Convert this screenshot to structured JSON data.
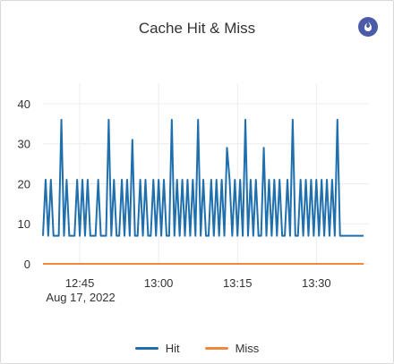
{
  "title": "Cache Hit & Miss",
  "badge_icon": "fire-icon",
  "chart_data": {
    "type": "line",
    "title": "Cache Hit & Miss",
    "xlabel": "",
    "ylabel": "",
    "ylim": [
      0,
      42
    ],
    "y_ticks": [
      0,
      10,
      20,
      30,
      40
    ],
    "x_ticks": [
      "12:45",
      "13:00",
      "13:15",
      "13:30"
    ],
    "x_date_label": "Aug 17, 2022",
    "x_range_minutes": [
      "12:38",
      "13:40"
    ],
    "grid": true,
    "legend_position": "bottom",
    "series": [
      {
        "name": "Hit",
        "color": "#1f6fad",
        "minute_offset_start": 0,
        "minute_step": 0.5,
        "values": [
          7,
          21,
          7,
          21,
          7,
          7,
          7,
          36,
          7,
          21,
          7,
          7,
          7,
          21,
          7,
          21,
          7,
          21,
          7,
          7,
          7,
          21,
          7,
          7,
          7,
          36,
          7,
          21,
          7,
          7,
          21,
          7,
          21,
          7,
          31,
          7,
          7,
          21,
          7,
          21,
          7,
          7,
          21,
          7,
          21,
          7,
          21,
          7,
          7,
          36,
          7,
          21,
          7,
          21,
          7,
          21,
          7,
          21,
          7,
          36,
          7,
          21,
          7,
          7,
          21,
          7,
          21,
          7,
          21,
          7,
          29,
          21,
          7,
          21,
          7,
          21,
          7,
          36,
          7,
          21,
          7,
          21,
          7,
          7,
          29,
          7,
          21,
          7,
          21,
          7,
          21,
          7,
          7,
          21,
          7,
          36,
          7,
          7,
          21,
          7,
          21,
          7,
          21,
          7,
          21,
          7,
          21,
          7,
          21,
          7,
          21,
          7,
          36,
          7,
          7,
          7,
          7,
          7,
          7,
          7,
          7,
          7,
          7
        ]
      },
      {
        "name": "Miss",
        "color": "#f0883e",
        "minute_offset_start": 0,
        "minute_step": 0.5,
        "values": [
          0,
          0,
          0,
          0,
          0,
          0,
          0,
          0,
          0,
          0,
          0,
          0,
          0,
          0,
          0,
          0,
          0,
          0,
          0,
          0,
          0,
          0,
          0,
          0,
          0,
          0,
          0,
          0,
          0,
          0,
          0,
          0,
          0,
          0,
          0,
          0,
          0,
          0,
          0,
          0,
          0,
          0,
          0,
          0,
          0,
          0,
          0,
          0,
          0,
          0,
          0,
          0,
          0,
          0,
          0,
          0,
          0,
          0,
          0,
          0,
          0,
          0,
          0,
          0,
          0,
          0,
          0,
          0,
          0,
          0,
          0,
          0,
          0,
          0,
          0,
          0,
          0,
          0,
          0,
          0,
          0,
          0,
          0,
          0,
          0,
          0,
          0,
          0,
          0,
          0,
          0,
          0,
          0,
          0,
          0,
          0,
          0,
          0,
          0,
          0,
          0,
          0,
          0,
          0,
          0,
          0,
          0,
          0,
          0,
          0,
          0,
          0,
          0,
          0,
          0,
          0,
          0,
          0,
          0,
          0,
          0,
          0,
          0
        ]
      }
    ]
  },
  "legend": [
    {
      "label": "Hit",
      "color": "#1f6fad"
    },
    {
      "label": "Miss",
      "color": "#f0883e"
    }
  ]
}
